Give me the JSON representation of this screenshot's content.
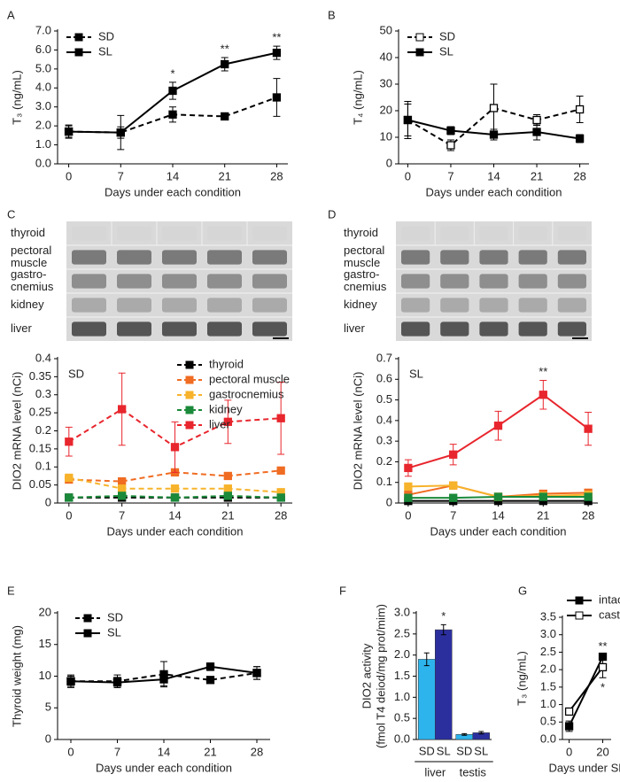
{
  "chart_data": [
    {
      "type": "line",
      "panel": "A",
      "ylabel": "T₃ (ng/mL)",
      "xlabel": "Days under each condition",
      "x": [
        0,
        7,
        14,
        21,
        28
      ],
      "xlim": [
        -1.5,
        29.5
      ],
      "xticks": [
        0,
        7,
        14,
        21,
        28
      ],
      "ylim": [
        0,
        7
      ],
      "yticks": [
        {
          "value": 0,
          "label": "0.0"
        },
        {
          "value": 1,
          "label": "1.0"
        },
        {
          "value": 2,
          "label": "2.0"
        },
        {
          "value": 3,
          "label": "3.0"
        },
        {
          "value": 4,
          "label": "4.0"
        },
        {
          "value": 5,
          "label": "5.0"
        },
        {
          "value": 6,
          "label": "6.0"
        },
        {
          "value": 7,
          "label": "7.0"
        }
      ],
      "legend": "upper left",
      "series": [
        {
          "name": "SD",
          "color": "#000000",
          "line_style": "dashed",
          "marker": "filled",
          "values": [
            1.7,
            1.65,
            2.6,
            2.5,
            3.5
          ],
          "errors": [
            0.35,
            0.9,
            0.4,
            0.1,
            1.0
          ]
        },
        {
          "name": "SL",
          "color": "#000000",
          "line_style": "solid",
          "marker": "filled",
          "values": [
            1.7,
            1.65,
            3.85,
            5.25,
            5.85
          ],
          "errors": [
            0.3,
            0.3,
            0.45,
            0.35,
            0.35
          ],
          "annotations": [
            null,
            null,
            "*",
            "**",
            "**"
          ]
        }
      ]
    },
    {
      "type": "line",
      "panel": "B",
      "ylabel": "T₄ (ng/mL)",
      "xlabel": "Days under each condition",
      "x": [
        0,
        7,
        14,
        21,
        28
      ],
      "xlim": [
        -1.5,
        29.5
      ],
      "xticks": [
        0,
        7,
        14,
        21,
        28
      ],
      "ylim": [
        0,
        50
      ],
      "yticks": [
        0,
        10,
        20,
        30,
        40,
        50
      ],
      "legend": "upper left",
      "series": [
        {
          "name": "SD",
          "color": "#000000",
          "line_style": "dashed",
          "marker": "open",
          "values": [
            16.5,
            7,
            21,
            16.5,
            20.5
          ],
          "errors": [
            6,
            2,
            9,
            2,
            5
          ]
        },
        {
          "name": "SL",
          "color": "#000000",
          "line_style": "solid",
          "marker": "filled",
          "values": [
            16.5,
            12.5,
            11,
            12,
            9.5
          ],
          "errors": [
            7,
            1.5,
            2,
            3,
            1.5
          ]
        }
      ]
    },
    {
      "type": "line",
      "panel": "C",
      "inset_label": "SD",
      "ylabel": "DIO2 mRNA level (nCi)",
      "xlabel": "Days under each condition",
      "blot_labels": [
        [
          "thyroid"
        ],
        [
          "pectoral",
          "muscle"
        ],
        [
          "gastro-",
          "cnemius"
        ],
        [
          "kidney"
        ],
        [
          "liver"
        ]
      ],
      "x": [
        0,
        7,
        14,
        21,
        28
      ],
      "xlim": [
        -1.5,
        29.5
      ],
      "xticks": [
        0,
        7,
        14,
        21,
        28
      ],
      "ylim": [
        0,
        0.4
      ],
      "yticks": [
        0,
        0.05,
        0.1,
        0.15,
        0.2,
        0.25,
        0.3,
        0.35,
        0.4
      ],
      "legend": "upper right",
      "series": [
        {
          "name": "thyroid",
          "color": "#000000",
          "line_style": "dashed",
          "marker": "filled",
          "values": [
            0.015,
            0.015,
            0.015,
            0.015,
            0.015
          ]
        },
        {
          "name": "pectoral muscle",
          "color": "#f06c22",
          "line_style": "dashed",
          "marker": "filled",
          "values": [
            0.065,
            0.06,
            0.085,
            0.075,
            0.09
          ]
        },
        {
          "name": "gastrocnemius",
          "color": "#f7b32b",
          "line_style": "dashed",
          "marker": "filled",
          "values": [
            0.07,
            0.04,
            0.04,
            0.04,
            0.03
          ]
        },
        {
          "name": "kidney",
          "color": "#1a8a3a",
          "line_style": "dashed",
          "marker": "filled",
          "values": [
            0.015,
            0.02,
            0.015,
            0.02,
            0.015
          ]
        },
        {
          "name": "liver",
          "color": "#e8262d",
          "line_style": "dashed",
          "marker": "filled",
          "values": [
            0.17,
            0.26,
            0.155,
            0.225,
            0.235
          ],
          "errors": [
            0.04,
            0.1,
            0.07,
            0.06,
            0.1
          ]
        }
      ]
    },
    {
      "type": "line",
      "panel": "D",
      "inset_label": "SL",
      "ylabel": "DIO2 mRNA level (nCi)",
      "xlabel": "Days under each condition",
      "blot_labels": [
        [
          "thyroid"
        ],
        [
          "pectoral",
          "muscle"
        ],
        [
          "gastro-",
          "cnemius"
        ],
        [
          "kidney"
        ],
        [
          "liver"
        ]
      ],
      "x": [
        0,
        7,
        14,
        21,
        28
      ],
      "xlim": [
        -1.5,
        29.5
      ],
      "xticks": [
        0,
        7,
        14,
        21,
        28
      ],
      "ylim": [
        0,
        0.7
      ],
      "yticks": [
        0,
        0.1,
        0.2,
        0.3,
        0.4,
        0.5,
        0.6,
        0.7
      ],
      "series": [
        {
          "name": "thyroid",
          "color": "#000000",
          "line_style": "solid",
          "marker": "filled",
          "values": [
            0.01,
            0.01,
            0.01,
            0.01,
            0.01
          ]
        },
        {
          "name": "pectoral muscle",
          "color": "#f06c22",
          "line_style": "solid",
          "marker": "filled",
          "values": [
            0.04,
            0.085,
            0.03,
            0.045,
            0.05
          ]
        },
        {
          "name": "gastrocnemius",
          "color": "#f7b32b",
          "line_style": "solid",
          "marker": "filled",
          "values": [
            0.08,
            0.085,
            0.03,
            0.035,
            0.04
          ]
        },
        {
          "name": "kidney",
          "color": "#1a8a3a",
          "line_style": "solid",
          "marker": "filled",
          "values": [
            0.025,
            0.025,
            0.03,
            0.03,
            0.03
          ]
        },
        {
          "name": "liver",
          "color": "#e8262d",
          "line_style": "solid",
          "marker": "filled",
          "values": [
            0.17,
            0.235,
            0.375,
            0.525,
            0.36
          ],
          "errors": [
            0.04,
            0.05,
            0.07,
            0.07,
            0.08
          ],
          "annotations": [
            null,
            null,
            null,
            "**",
            null
          ]
        }
      ]
    },
    {
      "type": "line",
      "panel": "E",
      "ylabel": "Thyroid weight (mg)",
      "xlabel": "Days under each condition",
      "x": [
        0,
        7,
        14,
        21,
        28
      ],
      "xlim": [
        -2,
        30
      ],
      "xticks": [
        0,
        7,
        14,
        21,
        28
      ],
      "ylim": [
        0,
        20
      ],
      "yticks": [
        0,
        5,
        10,
        15,
        20
      ],
      "legend": "upper left",
      "series": [
        {
          "name": "SD",
          "color": "#000000",
          "line_style": "dashed",
          "marker": "filled",
          "values": [
            9.2,
            9.2,
            10.3,
            9.4,
            10.5
          ],
          "errors": [
            1,
            1,
            2,
            0.5,
            1
          ]
        },
        {
          "name": "SL",
          "color": "#000000",
          "line_style": "solid",
          "marker": "filled",
          "values": [
            9.2,
            9.0,
            9.5,
            11.5,
            10.5
          ],
          "errors": [
            0.8,
            0.8,
            1,
            0.6,
            1
          ]
        }
      ]
    },
    {
      "type": "bar",
      "panel": "F",
      "ylabel": [
        "DIO2 activity",
        "(fmol T4 deiod/mg prot/mim)"
      ],
      "categories": [
        "SD",
        "SL",
        "SD",
        "SL"
      ],
      "groups": [
        "liver",
        "testis"
      ],
      "values": [
        1.9,
        2.6,
        0.12,
        0.16
      ],
      "errors": [
        0.15,
        0.12,
        0.02,
        0.03
      ],
      "annotations": [
        null,
        "*",
        null,
        null
      ],
      "colors": [
        "#2db4ec",
        "#2b2f9e",
        "#2db4ec",
        "#2b2f9e"
      ],
      "ylim": [
        0,
        3
      ],
      "yticks": [
        {
          "value": 0,
          "label": "0.0"
        },
        {
          "value": 0.5,
          "label": "0.5"
        },
        {
          "value": 1,
          "label": "1.0"
        },
        {
          "value": 1.5,
          "label": "1.5"
        },
        {
          "value": 2,
          "label": "2.0"
        },
        {
          "value": 2.5,
          "label": "2.5"
        },
        {
          "value": 3,
          "label": "3.0"
        }
      ]
    },
    {
      "type": "line",
      "panel": "G",
      "ylabel": "T₃ (ng/mL)",
      "xlabel": "Days under SL",
      "x": [
        0,
        20
      ],
      "xlim": [
        -4,
        25
      ],
      "xticks": [
        0,
        20
      ],
      "ylim": [
        0,
        3.5
      ],
      "yticks": [
        {
          "value": 0,
          "label": "0.0"
        },
        {
          "value": 0.5,
          "label": "0.5"
        },
        {
          "value": 1,
          "label": "1.0"
        },
        {
          "value": 1.5,
          "label": "1.5"
        },
        {
          "value": 2,
          "label": "2.0"
        },
        {
          "value": 2.5,
          "label": "2.5"
        },
        {
          "value": 3,
          "label": "3.0"
        },
        {
          "value": 3.5,
          "label": "3.5"
        }
      ],
      "legend": "upper left",
      "series": [
        {
          "name": "intact",
          "color": "#000000",
          "line_style": "solid",
          "marker": "filled",
          "values": [
            0.38,
            2.37
          ],
          "errors": [
            0.15,
            0.05
          ],
          "annotations": [
            null,
            "**"
          ]
        },
        {
          "name": "castrated",
          "color": "#000000",
          "line_style": "solid",
          "marker": "open",
          "values": [
            0.8,
            2.07
          ],
          "errors": [
            0.05,
            0.3
          ],
          "annotations": [
            null,
            "*"
          ]
        }
      ]
    }
  ]
}
